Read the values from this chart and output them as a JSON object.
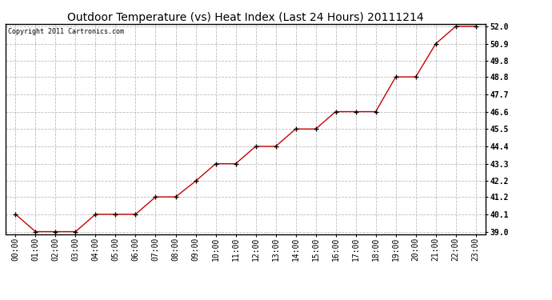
{
  "title": "Outdoor Temperature (vs) Heat Index (Last 24 Hours) 20111214",
  "copyright": "Copyright 2011 Cartronics.com",
  "x_labels": [
    "00:00",
    "01:00",
    "02:00",
    "03:00",
    "04:00",
    "05:00",
    "06:00",
    "07:00",
    "08:00",
    "09:00",
    "10:00",
    "11:00",
    "12:00",
    "13:00",
    "14:00",
    "15:00",
    "16:00",
    "17:00",
    "18:00",
    "19:00",
    "20:00",
    "21:00",
    "22:00",
    "23:00"
  ],
  "y_values": [
    40.1,
    39.0,
    39.0,
    39.0,
    40.1,
    40.1,
    40.1,
    41.2,
    41.2,
    42.2,
    43.3,
    43.3,
    44.4,
    44.4,
    45.5,
    45.5,
    46.6,
    46.6,
    46.6,
    48.8,
    48.8,
    50.9,
    52.0,
    52.0
  ],
  "line_color": "#cc0000",
  "marker": "+",
  "marker_color": "#000000",
  "ylim_min": 39.0,
  "ylim_max": 52.0,
  "ytick_labels": [
    "39.0",
    "40.1",
    "41.2",
    "42.2",
    "43.3",
    "44.4",
    "45.5",
    "46.6",
    "47.7",
    "48.8",
    "49.8",
    "50.9",
    "52.0"
  ],
  "ytick_values": [
    39.0,
    40.1,
    41.2,
    42.2,
    43.3,
    44.4,
    45.5,
    46.6,
    47.7,
    48.8,
    49.8,
    50.9,
    52.0
  ],
  "background_color": "#ffffff",
  "grid_color": "#bbbbbb",
  "title_fontsize": 10,
  "copyright_fontsize": 6,
  "tick_fontsize": 7
}
